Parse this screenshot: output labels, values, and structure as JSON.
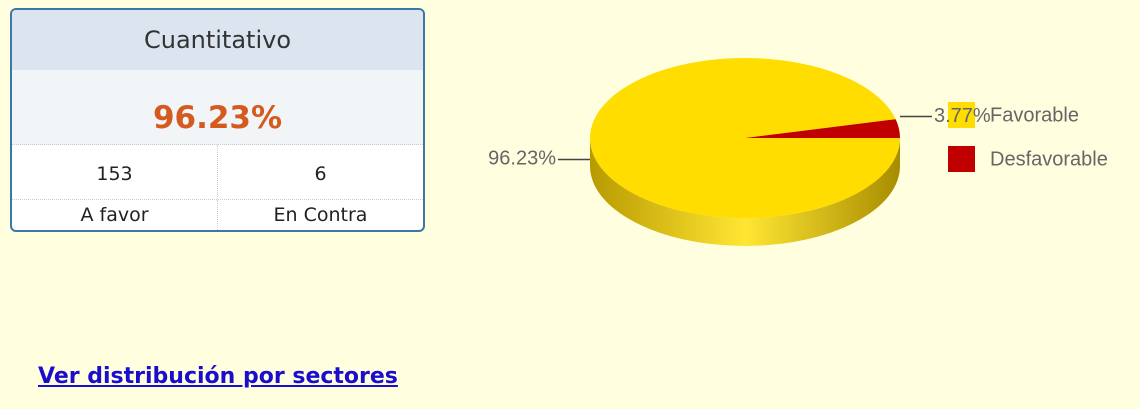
{
  "panel": {
    "title": "Cuantitativo",
    "percent": "96.23%",
    "counts": [
      153,
      6
    ],
    "labels": [
      "A favor",
      "En Contra"
    ]
  },
  "chart_data": {
    "type": "pie",
    "categories": [
      "Favorable",
      "Desfavorable"
    ],
    "values": [
      96.23,
      3.77
    ],
    "value_labels": [
      "96.23%",
      "3.77%"
    ],
    "colors": [
      "#ffdd00",
      "#c00000"
    ],
    "legend": "right"
  },
  "link": "Ver distribución por sectores"
}
